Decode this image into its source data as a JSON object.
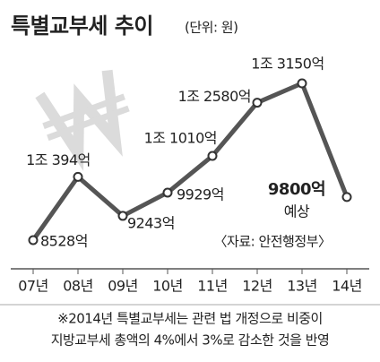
{
  "chart_data": {
    "type": "line",
    "title": "특별교부세 추이",
    "subtitle": "(단위: 원)",
    "categories": [
      "07년",
      "08년",
      "09년",
      "10년",
      "11년",
      "12년",
      "13년",
      "14년"
    ],
    "values": [
      8528,
      10394,
      9243,
      9929,
      11010,
      12580,
      13150,
      9800
    ],
    "value_labels": [
      "8528억",
      "1조 394억",
      "9243억",
      "9929억",
      "1조 1010억",
      "1조 2580억",
      "1조 3150억",
      "9800억"
    ],
    "color": "#555555",
    "annotation": "예상",
    "source": "〈자료: 안전행정부〉",
    "footnote": [
      "※2014년 특별교부세는 관련 법 개정으로 비중이",
      "지방교부세 총액의 4%에서 3%로 감소한 것을 반영"
    ]
  }
}
